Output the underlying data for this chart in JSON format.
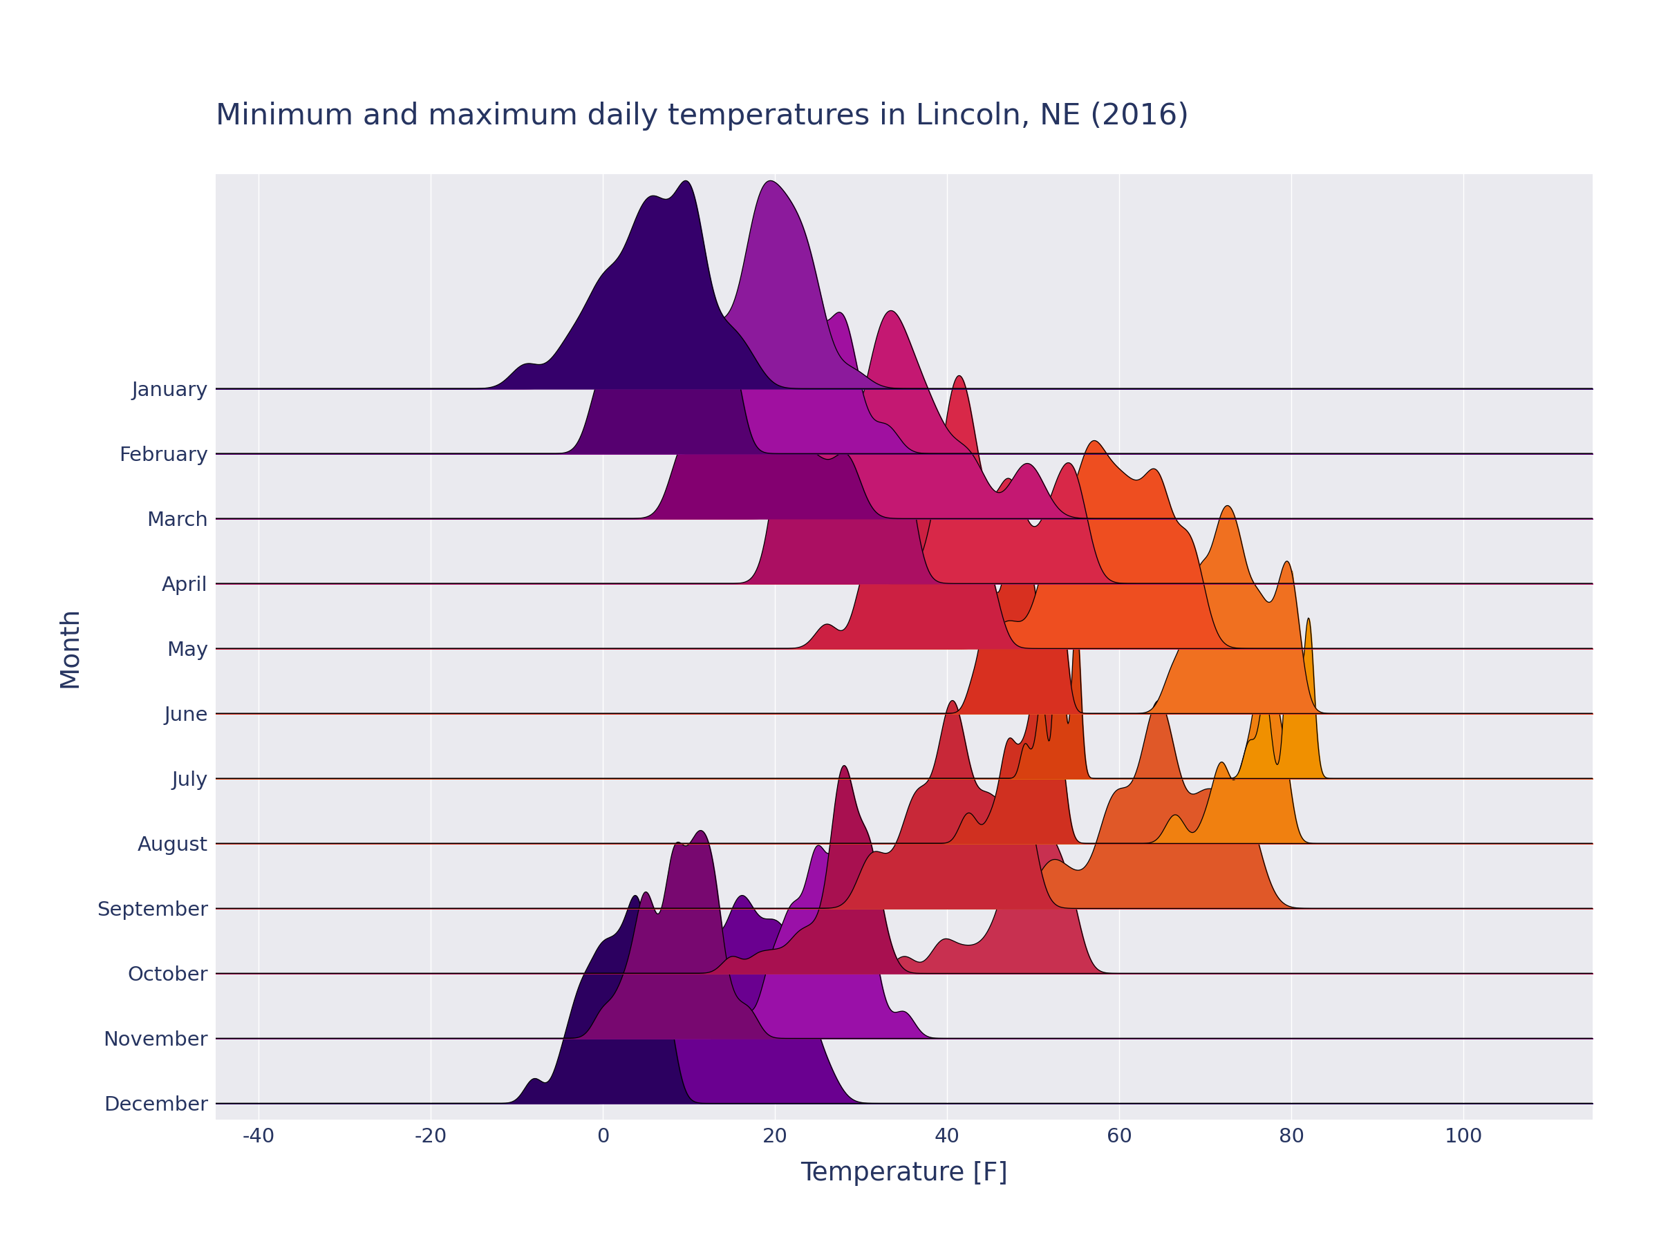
{
  "title": "Minimum and maximum daily temperatures in Lincoln, NE (2016)",
  "xlabel": "Temperature [F]",
  "ylabel": "Month",
  "months": [
    "January",
    "February",
    "March",
    "April",
    "May",
    "June",
    "July",
    "August",
    "September",
    "October",
    "November",
    "December"
  ],
  "xlim": [
    -45,
    115
  ],
  "background_color": "#ffffff",
  "plot_bg_color": "#eaeaef",
  "title_color": "#263460",
  "label_color": "#263460",
  "grid_color": "#ffffff",
  "overlap": 3.2,
  "bw": 0.28,
  "temp_min_data": {
    "January": [
      -2,
      2,
      -3,
      14,
      0,
      0,
      2,
      -9,
      17,
      10,
      6,
      4,
      6,
      10,
      10,
      11,
      4,
      7,
      6,
      8,
      10,
      12,
      4,
      8,
      15,
      4,
      0,
      10,
      10,
      6,
      -5
    ],
    "February": [
      5,
      13,
      9,
      15,
      10,
      4,
      0,
      5,
      4,
      9,
      11,
      8,
      5,
      15,
      5,
      -1,
      13,
      13,
      15,
      11,
      7,
      1,
      1,
      12,
      8,
      8,
      6,
      3,
      6
    ],
    "March": [
      13,
      9,
      9,
      20,
      23,
      18,
      10,
      11,
      12,
      17,
      21,
      16,
      17,
      17,
      15,
      15,
      15,
      17,
      14,
      15,
      19,
      18,
      18,
      25,
      28,
      29,
      28,
      25,
      21,
      21,
      22
    ],
    "April": [
      21,
      21,
      25,
      25,
      23,
      21,
      20,
      25,
      35,
      34,
      35,
      33,
      27,
      22,
      22,
      25,
      23,
      24,
      29,
      32,
      26,
      23,
      22,
      28,
      33,
      35,
      35,
      28,
      31,
      28
    ],
    "May": [
      34,
      35,
      36,
      30,
      26,
      32,
      35,
      37,
      42,
      42,
      39,
      36,
      42,
      45,
      38,
      31,
      31,
      37,
      41,
      40,
      43,
      45,
      44,
      42,
      40,
      38,
      33,
      36,
      36,
      38,
      41
    ],
    "June": [
      45,
      49,
      48,
      47,
      47,
      47,
      53,
      49,
      53,
      49,
      51,
      48,
      44,
      43,
      45,
      49,
      53,
      50,
      53,
      49,
      47,
      46,
      45,
      48,
      50,
      52,
      53,
      51,
      48,
      45
    ],
    "July": [
      53,
      53,
      51,
      50,
      53,
      53,
      53,
      55,
      53,
      55,
      55,
      53,
      53,
      55,
      55,
      55,
      55,
      55,
      55,
      55,
      53,
      51,
      53,
      51,
      53,
      53,
      49,
      49,
      53,
      51,
      51
    ],
    "August": [
      52,
      51,
      51,
      51,
      53,
      53,
      50,
      48,
      47,
      51,
      51,
      53,
      53,
      53,
      51,
      47,
      43,
      42,
      45,
      47,
      50,
      48,
      46,
      47,
      49,
      51,
      51,
      49,
      49,
      50,
      51
    ],
    "September": [
      49,
      48,
      48,
      48,
      49,
      49,
      45,
      45,
      45,
      41,
      40,
      42,
      40,
      43,
      42,
      45,
      41,
      41,
      40,
      37,
      36,
      36,
      38,
      40,
      40,
      37,
      33,
      31,
      31,
      35
    ],
    "October": [
      31,
      32,
      30,
      28,
      29,
      28,
      27,
      29,
      31,
      28,
      28,
      27,
      28,
      30,
      31,
      33,
      28,
      26,
      24,
      22,
      25,
      27,
      29,
      31,
      31,
      28,
      27,
      20,
      15,
      18,
      23
    ],
    "November": [
      17,
      13,
      12,
      11,
      11,
      12,
      11,
      8,
      4,
      8,
      9,
      10,
      13,
      11,
      8,
      5,
      0,
      3,
      5,
      10,
      8,
      5,
      5,
      8,
      13,
      15,
      13,
      9,
      6,
      2
    ],
    "December": [
      0,
      -3,
      -2,
      0,
      1,
      2,
      4,
      4,
      5,
      3,
      1,
      2,
      5,
      7,
      8,
      6,
      4,
      4,
      -1,
      -1,
      -3,
      0,
      4,
      7,
      7,
      3,
      2,
      -2,
      -4,
      -5,
      -8
    ]
  },
  "temp_max_data": {
    "January": [
      20,
      17,
      7,
      24,
      12,
      12,
      14,
      7,
      25,
      21,
      18,
      18,
      19,
      22,
      23,
      23,
      17,
      20,
      18,
      21,
      23,
      25,
      18,
      21,
      29,
      19,
      14,
      24,
      21,
      18,
      -3
    ],
    "February": [
      18,
      26,
      23,
      28,
      23,
      18,
      14,
      20,
      17,
      24,
      25,
      22,
      19,
      30,
      18,
      14,
      28,
      28,
      33,
      26,
      22,
      16,
      16,
      28,
      23,
      23,
      21,
      16,
      21
    ],
    "March": [
      30,
      24,
      24,
      37,
      43,
      36,
      26,
      27,
      28,
      33,
      40,
      33,
      34,
      34,
      32,
      32,
      32,
      34,
      31,
      32,
      36,
      35,
      35,
      42,
      49,
      50,
      49,
      43,
      38,
      38,
      39
    ],
    "April": [
      41,
      40,
      43,
      43,
      42,
      40,
      38,
      43,
      55,
      54,
      55,
      53,
      47,
      41,
      41,
      43,
      41,
      42,
      48,
      52,
      46,
      41,
      40,
      48,
      53,
      55,
      55,
      47,
      51,
      47
    ],
    "May": [
      55,
      56,
      57,
      51,
      47,
      52,
      56,
      59,
      64,
      64,
      61,
      57,
      64,
      68,
      61,
      53,
      53,
      59,
      65,
      62,
      68,
      69,
      68,
      65,
      62,
      59,
      54,
      57,
      57,
      60,
      65
    ],
    "June": [
      69,
      74,
      72,
      71,
      71,
      72,
      79,
      74,
      80,
      74,
      78,
      72,
      67,
      66,
      69,
      74,
      80,
      76,
      80,
      76,
      72,
      70,
      69,
      73,
      77,
      79,
      80,
      76,
      73,
      69
    ],
    "July": [
      80,
      80,
      77,
      76,
      80,
      80,
      80,
      82,
      80,
      82,
      82,
      80,
      80,
      82,
      82,
      82,
      82,
      82,
      82,
      82,
      80,
      77,
      80,
      77,
      80,
      80,
      75,
      75,
      80,
      77,
      77
    ],
    "August": [
      78,
      77,
      77,
      77,
      79,
      79,
      76,
      74,
      72,
      77,
      77,
      79,
      79,
      79,
      77,
      72,
      67,
      66,
      70,
      72,
      76,
      74,
      71,
      72,
      75,
      77,
      77,
      75,
      75,
      77,
      77
    ],
    "September": [
      75,
      73,
      73,
      73,
      75,
      75,
      70,
      70,
      70,
      65,
      64,
      66,
      64,
      68,
      66,
      70,
      65,
      65,
      64,
      60,
      59,
      59,
      62,
      64,
      64,
      60,
      55,
      52,
      52,
      59
    ],
    "October": [
      52,
      54,
      51,
      49,
      50,
      49,
      48,
      51,
      52,
      49,
      49,
      48,
      49,
      52,
      53,
      55,
      49,
      47,
      44,
      42,
      46,
      49,
      52,
      54,
      54,
      50,
      49,
      40,
      35,
      39,
      46
    ],
    "November": [
      35,
      31,
      29,
      28,
      28,
      30,
      28,
      25,
      20,
      24,
      25,
      27,
      30,
      28,
      25,
      22,
      16,
      20,
      22,
      27,
      25,
      22,
      22,
      25,
      30,
      32,
      30,
      27,
      24,
      19
    ],
    "December": [
      12,
      9,
      10,
      13,
      15,
      16,
      18,
      19,
      21,
      17,
      15,
      16,
      21,
      24,
      26,
      22,
      20,
      20,
      12,
      12,
      10,
      14,
      19,
      23,
      23,
      17,
      16,
      11,
      9,
      7,
      4
    ]
  },
  "month_palette": {
    "January": [
      "#35006b",
      "#8c1a9c"
    ],
    "February": [
      "#560070",
      "#a010a0"
    ],
    "March": [
      "#830070",
      "#c41872"
    ],
    "April": [
      "#ab0f62",
      "#d82848"
    ],
    "May": [
      "#cc2042",
      "#ee4e20"
    ],
    "June": [
      "#d83020",
      "#f07020"
    ],
    "July": [
      "#d84010",
      "#f09000"
    ],
    "August": [
      "#d03020",
      "#f08010"
    ],
    "September": [
      "#c82838",
      "#e05828"
    ],
    "October": [
      "#a81050",
      "#c83050"
    ],
    "November": [
      "#780870",
      "#9a10a8"
    ],
    "December": [
      "#2c0060",
      "#6a0090"
    ]
  }
}
